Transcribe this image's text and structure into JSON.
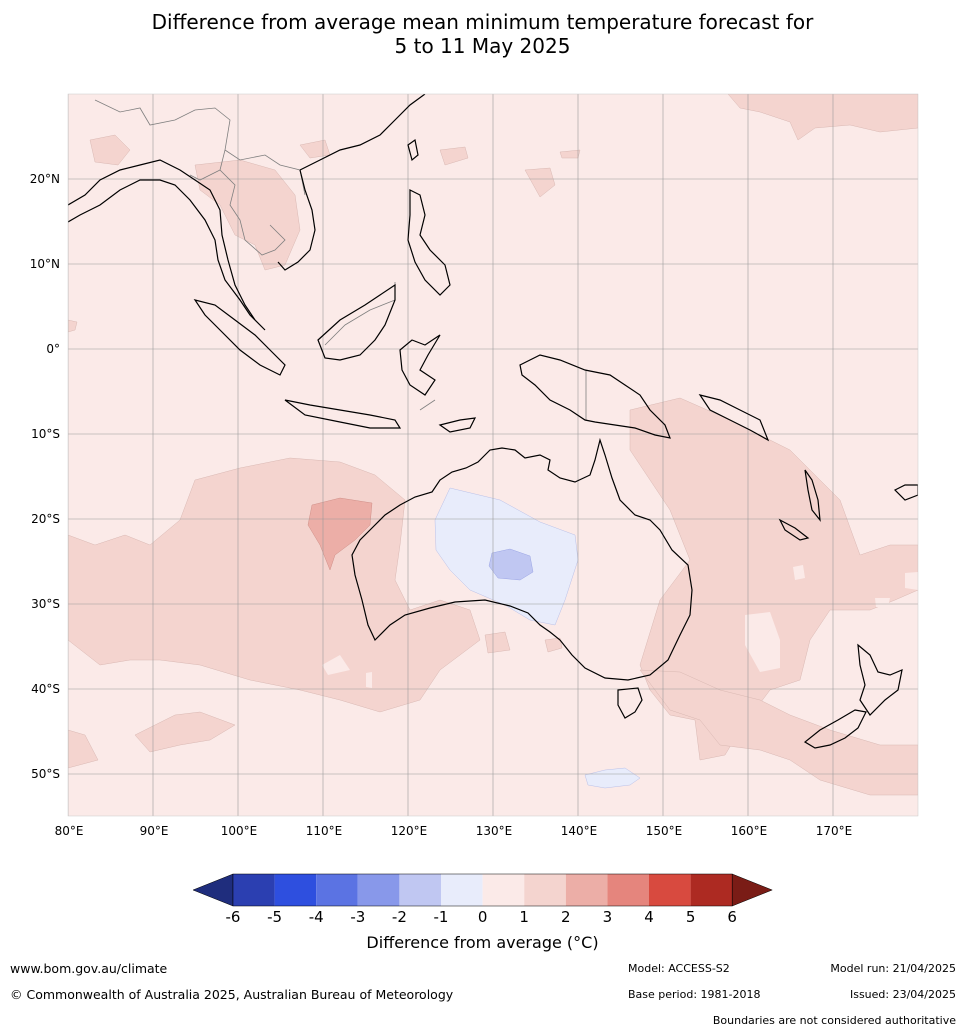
{
  "title": {
    "line1": "Difference from average mean minimum temperature forecast for",
    "line2": "5 to 11 May 2025"
  },
  "map": {
    "lat_labels": [
      "20°N",
      "10°N",
      "0°",
      "10°S",
      "20°S",
      "30°S",
      "40°S",
      "50°S"
    ],
    "lon_labels": [
      "80°E",
      "90°E",
      "100°E",
      "110°E",
      "120°E",
      "130°E",
      "140°E",
      "150°E",
      "160°E",
      "170°E"
    ],
    "colors": {
      "bg_0_1": "#fbeae8",
      "band_1_2": "#f4d4cf",
      "band_2_3": "#ecaea7",
      "band_m1_0": "#e8ecfb",
      "band_m2_m1": "#c0c7f2",
      "grid": "#9a9a9a",
      "coast": "#000000",
      "border": "#7f7f7f"
    }
  },
  "legend": {
    "ticks": [
      "-6",
      "-5",
      "-4",
      "-3",
      "-2",
      "-1",
      "0",
      "1",
      "2",
      "3",
      "4",
      "5",
      "6"
    ],
    "colors": [
      "#1f2d7d",
      "#2b3fb1",
      "#2e4fdf",
      "#5b73e3",
      "#8898ea",
      "#c0c7f2",
      "#e8ecfb",
      "#fbeae8",
      "#f4d4cf",
      "#ecaea7",
      "#e5857d",
      "#d84a3f",
      "#ad2a22",
      "#7a1c16"
    ],
    "label": "Difference from average (°C)"
  },
  "footer": {
    "website": "www.bom.gov.au/climate",
    "copyright": "© Commonwealth of Australia 2025, Australian Bureau of Meteorology",
    "model": "Model: ACCESS-S2",
    "base_period": "Base period: 1981-2018",
    "model_run": "Model run: 21/04/2025",
    "issued": "Issued: 23/04/2025",
    "disclaimer": "Boundaries are not considered authoritative"
  }
}
